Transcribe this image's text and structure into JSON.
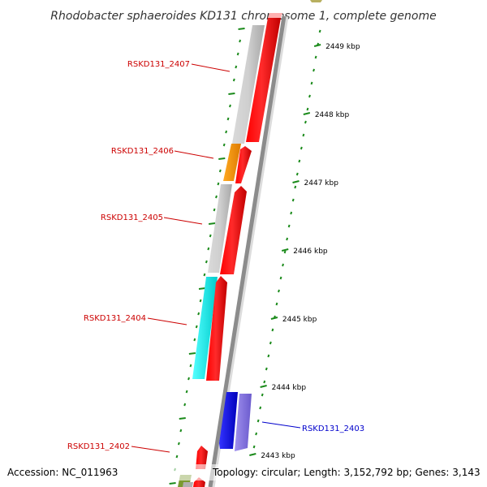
{
  "title": "Rhodobacter sphaeroides KD131 chromosome 1, complete genome",
  "accession": "Accession: NC_011963",
  "topology": "Topology: circular; Length: 3,152,792 bp; Genes: 3,143",
  "scale_labels": [
    "2449 kbp",
    "2448 kbp",
    "2447 kbp",
    "2446 kbp",
    "2445 kbp",
    "2444 kbp",
    "2443 kbp"
  ],
  "gene_labels": [
    {
      "text": "RSKD131_2407",
      "color": "#cc0000"
    },
    {
      "text": "RSKD131_2406",
      "color": "#cc0000"
    },
    {
      "text": "RSKD131_2405",
      "color": "#cc0000"
    },
    {
      "text": "RSKD131_2404",
      "color": "#cc0000"
    },
    {
      "text": "RSKD131_2403",
      "color": "#0000cc"
    },
    {
      "text": "RSKD131_2402",
      "color": "#cc0000"
    }
  ],
  "colors": {
    "backbone": "#8c8c8c",
    "cds": "#ff0000",
    "gene_grey": "#c8c8c8",
    "gene_orange": "#ff9900",
    "gene_cyan": "#00ffff",
    "gene_blue": "#0000ff",
    "gene_lavender": "#8878d8",
    "tick_green": "#1a8a1a"
  }
}
